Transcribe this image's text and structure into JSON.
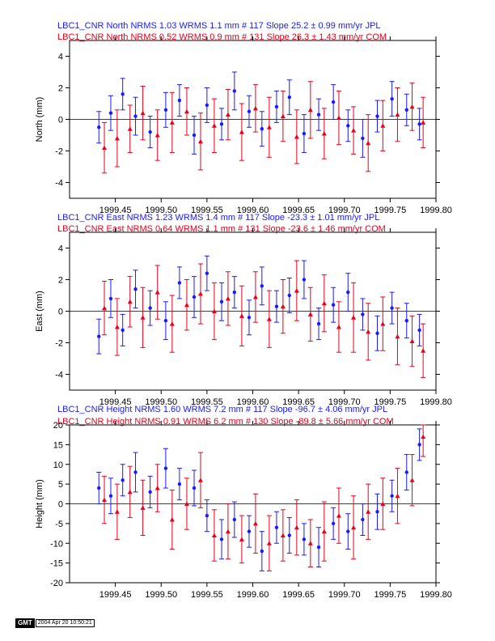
{
  "colors": {
    "jpl": "#1a1aff",
    "com": "#e8001c",
    "axis": "#000000"
  },
  "stamp": {
    "logo": "GMT",
    "date": "2004 Apr 20 10:50:21"
  },
  "chart_data": [
    {
      "type": "scatter",
      "ylabel": "North (mm)",
      "titles": [
        "LBC1_CNR North NRMS 1.03 WRMS  1.1 mm # 117 Slope   25.2 ±  0.99 mm/yr JPL",
        "LBC1_CNR North NRMS 0.52 WRMS  0.9 mm # 131 Slope   26.3 ±  1.43 mm/yr COM"
      ],
      "xlim": [
        1999.4,
        1999.8
      ],
      "ylim": [
        -5,
        5
      ],
      "xticks": [
        "1999.45",
        "1999.50",
        "1999.55",
        "1999.60",
        "1999.65",
        "1999.70",
        "1999.75",
        "1999.80"
      ],
      "yticks": [
        -4,
        -2,
        0,
        2,
        4
      ],
      "series": [
        {
          "name": "JPL",
          "x": [
            1999.432,
            1999.445,
            1999.458,
            1999.472,
            1999.488,
            1999.505,
            1999.52,
            1999.536,
            1999.55,
            1999.566,
            1999.58,
            1999.596,
            1999.61,
            1999.626,
            1999.64,
            1999.656,
            1999.672,
            1999.688,
            1999.704,
            1999.72,
            1999.736,
            1999.752,
            1999.768,
            1999.782
          ],
          "y": [
            -0.5,
            0.4,
            1.6,
            0.2,
            -0.8,
            0.6,
            1.2,
            -1.0,
            0.9,
            -0.3,
            1.8,
            0.5,
            -0.6,
            0.8,
            1.4,
            -0.9,
            0.3,
            1.1,
            -0.4,
            -1.2,
            0.2,
            1.3,
            0.6,
            -0.3
          ],
          "err": [
            1.0,
            1.1,
            1.0,
            1.2,
            1.0,
            1.1,
            1.0,
            1.2,
            1.1,
            1.0,
            1.2,
            1.0,
            1.1,
            1.0,
            1.1,
            1.2,
            1.0,
            1.1,
            1.0,
            1.2,
            1.0,
            1.1,
            1.0,
            1.0
          ]
        },
        {
          "name": "COM",
          "x": [
            1999.438,
            1999.452,
            1999.466,
            1999.48,
            1999.496,
            1999.512,
            1999.528,
            1999.543,
            1999.558,
            1999.573,
            1999.588,
            1999.603,
            1999.618,
            1999.633,
            1999.648,
            1999.663,
            1999.678,
            1999.694,
            1999.71,
            1999.726,
            1999.742,
            1999.758,
            1999.774,
            1999.786
          ],
          "y": [
            -1.8,
            -1.2,
            -0.6,
            0.4,
            -1.0,
            -0.2,
            0.5,
            -1.4,
            -0.4,
            0.3,
            -0.8,
            0.7,
            -0.5,
            0.2,
            -1.1,
            0.6,
            -0.9,
            0.1,
            -0.7,
            -1.5,
            -0.4,
            0.3,
            0.8,
            -0.2
          ],
          "err": [
            1.6,
            1.8,
            1.5,
            1.7,
            1.6,
            1.9,
            1.5,
            1.8,
            1.7,
            1.6,
            1.8,
            1.5,
            1.9,
            1.6,
            1.7,
            1.8,
            1.6,
            1.7,
            1.5,
            1.8,
            1.6,
            1.7,
            1.5,
            1.6
          ]
        }
      ]
    },
    {
      "type": "scatter",
      "ylabel": "East (mm)",
      "titles": [
        "LBC1_CNR East NRMS 1.23 WRMS  1.4 mm # 117 Slope  -23.3 ±  1.01 mm/yr JPL",
        "LBC1_CNR East NRMS 0.64 WRMS  1.1 mm # 131 Slope  -23.6 ±  1.46 mm/yr COM"
      ],
      "xlim": [
        1999.4,
        1999.8
      ],
      "ylim": [
        -5,
        5
      ],
      "xticks": [
        "1999.45",
        "1999.50",
        "1999.55",
        "1999.60",
        "1999.65",
        "1999.70",
        "1999.75",
        "1999.80"
      ],
      "yticks": [
        -4,
        -2,
        0,
        2,
        4
      ],
      "series": [
        {
          "name": "JPL",
          "x": [
            1999.432,
            1999.445,
            1999.458,
            1999.472,
            1999.488,
            1999.505,
            1999.52,
            1999.536,
            1999.55,
            1999.566,
            1999.58,
            1999.596,
            1999.61,
            1999.626,
            1999.64,
            1999.656,
            1999.672,
            1999.688,
            1999.704,
            1999.72,
            1999.736,
            1999.752,
            1999.768,
            1999.782
          ],
          "y": [
            -1.6,
            0.8,
            -1.2,
            1.4,
            0.2,
            -0.6,
            1.8,
            0.9,
            2.4,
            0.6,
            1.2,
            -0.4,
            1.6,
            0.3,
            1.0,
            2.0,
            -0.8,
            0.4,
            1.2,
            -0.2,
            -1.4,
            0.2,
            -0.6,
            -1.2
          ],
          "err": [
            1.1,
            1.2,
            1.0,
            1.2,
            1.1,
            1.2,
            1.0,
            1.3,
            1.1,
            1.2,
            1.0,
            1.1,
            1.2,
            1.0,
            1.1,
            1.2,
            1.0,
            1.1,
            1.2,
            1.0,
            1.1,
            1.0,
            1.1,
            1.0
          ]
        },
        {
          "name": "COM",
          "x": [
            1999.438,
            1999.452,
            1999.466,
            1999.48,
            1999.496,
            1999.512,
            1999.528,
            1999.543,
            1999.558,
            1999.573,
            1999.588,
            1999.603,
            1999.618,
            1999.633,
            1999.648,
            1999.663,
            1999.678,
            1999.694,
            1999.71,
            1999.726,
            1999.742,
            1999.758,
            1999.774,
            1999.786
          ],
          "y": [
            0.2,
            -1.0,
            0.6,
            -0.4,
            1.2,
            -0.8,
            0.4,
            1.1,
            0.0,
            0.8,
            -0.3,
            0.9,
            -0.5,
            0.3,
            1.3,
            -0.2,
            0.5,
            -1.0,
            -0.4,
            -1.3,
            -0.8,
            -1.6,
            -1.9,
            -2.5
          ],
          "err": [
            1.7,
            1.8,
            1.6,
            1.9,
            1.7,
            1.8,
            1.6,
            1.9,
            1.8,
            1.7,
            1.9,
            1.6,
            1.8,
            1.7,
            1.9,
            1.7,
            1.8,
            1.6,
            2.2,
            1.8,
            1.7,
            1.8,
            1.6,
            1.7
          ]
        }
      ]
    },
    {
      "type": "scatter",
      "ylabel": "Height (mm)",
      "titles": [
        "LBC1_CNR Height NRMS 1.60 WRMS  7.2 mm # 117 Slope  -96.7 ±  4.06 mm/yr JPL",
        "LBC1_CNR Height NRMS 0.91 WRMS  6.2 mm # 130 Slope  -89.8 ±  5.66 mm/yr COM"
      ],
      "xlim": [
        1999.4,
        1999.8
      ],
      "ylim": [
        -20,
        20
      ],
      "xticks": [
        "1999.45",
        "1999.50",
        "1999.55",
        "1999.60",
        "1999.65",
        "1999.70",
        "1999.75",
        "1999.80"
      ],
      "yticks": [
        -20,
        -15,
        -10,
        -5,
        0,
        5,
        10,
        15,
        20
      ],
      "series": [
        {
          "name": "JPL",
          "x": [
            1999.432,
            1999.445,
            1999.458,
            1999.472,
            1999.488,
            1999.505,
            1999.52,
            1999.536,
            1999.55,
            1999.566,
            1999.58,
            1999.596,
            1999.61,
            1999.626,
            1999.64,
            1999.656,
            1999.672,
            1999.688,
            1999.704,
            1999.72,
            1999.736,
            1999.752,
            1999.768,
            1999.782
          ],
          "y": [
            4.0,
            2.0,
            6.0,
            8.0,
            3.0,
            9.0,
            5.0,
            4.0,
            -3.0,
            -9.0,
            -4.0,
            -7.0,
            -12.0,
            -6.0,
            -8.0,
            -9.0,
            -11.0,
            -5.0,
            -7.0,
            -4.0,
            -2.0,
            2.0,
            8.0,
            15.0
          ],
          "err": [
            4.0,
            4.5,
            4.0,
            5.0,
            4.0,
            5.0,
            4.0,
            4.5,
            4.0,
            5.0,
            4.5,
            4.0,
            5.0,
            4.0,
            4.5,
            4.0,
            5.0,
            4.0,
            4.5,
            4.0,
            4.5,
            4.0,
            4.5,
            4.0
          ]
        },
        {
          "name": "COM",
          "x": [
            1999.438,
            1999.452,
            1999.466,
            1999.48,
            1999.496,
            1999.512,
            1999.528,
            1999.543,
            1999.558,
            1999.573,
            1999.588,
            1999.603,
            1999.618,
            1999.633,
            1999.648,
            1999.663,
            1999.678,
            1999.694,
            1999.71,
            1999.726,
            1999.742,
            1999.758,
            1999.774,
            1999.786
          ],
          "y": [
            1.0,
            -2.0,
            3.0,
            -1.0,
            4.0,
            -4.0,
            0.0,
            6.0,
            -8.0,
            -7.0,
            -9.0,
            -5.0,
            -10.0,
            -8.0,
            -6.0,
            -10.0,
            -7.0,
            -3.0,
            -6.0,
            -2.0,
            0.0,
            2.0,
            6.0,
            17.0
          ],
          "err": [
            6.0,
            7.0,
            6.5,
            7.0,
            6.0,
            7.5,
            6.5,
            7.0,
            6.5,
            7.0,
            6.0,
            7.5,
            7.0,
            6.5,
            7.0,
            6.0,
            7.5,
            7.0,
            8.0,
            7.0,
            6.5,
            7.0,
            6.5,
            5.0
          ]
        }
      ]
    }
  ]
}
